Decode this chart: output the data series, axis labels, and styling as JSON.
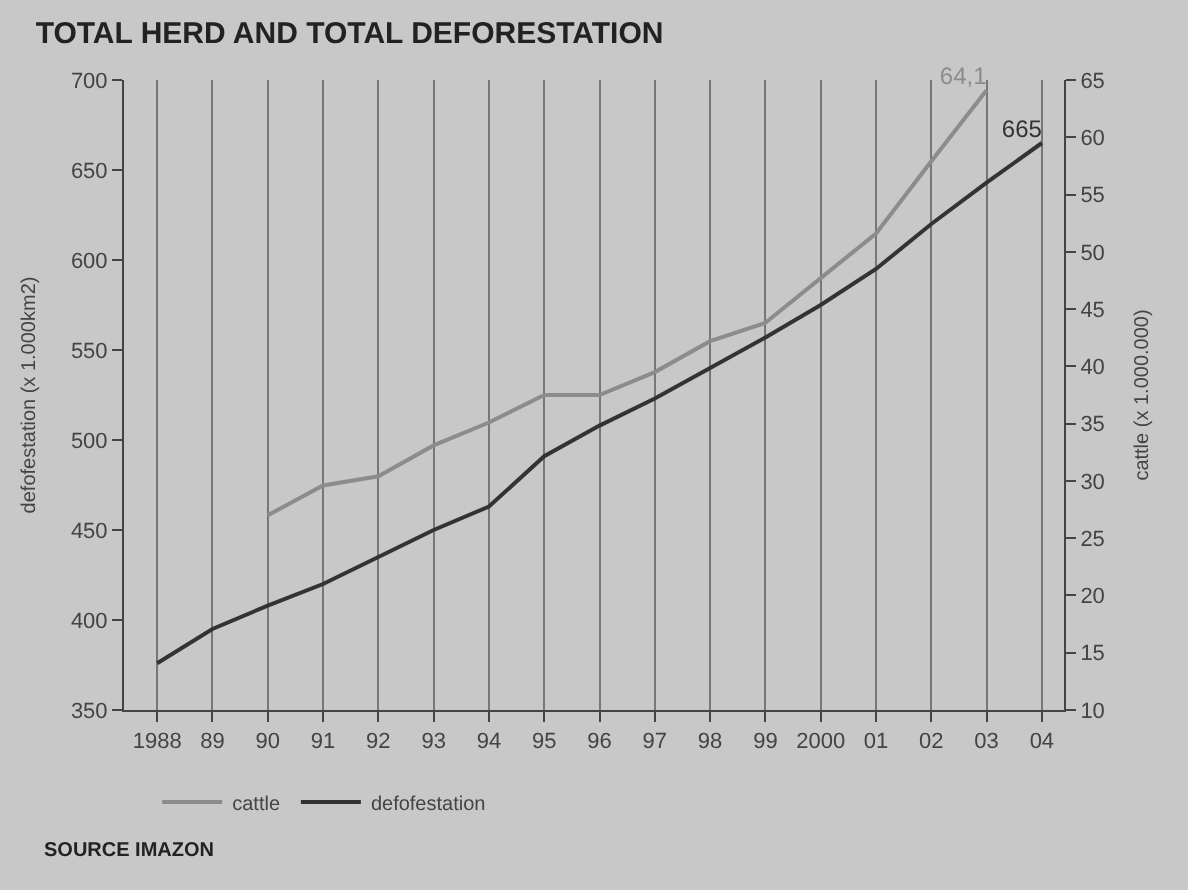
{
  "chart_data": {
    "type": "line",
    "title": "TOTAL HERD AND TOTAL DEFORESTATION",
    "categories": [
      "1988",
      "89",
      "90",
      "91",
      "92",
      "93",
      "94",
      "95",
      "96",
      "97",
      "98",
      "99",
      "2000",
      "01",
      "02",
      "03",
      "04"
    ],
    "series": [
      {
        "name": "cattle",
        "color": "#8c8c8c",
        "axis": "y2",
        "values": [
          null,
          null,
          27.0,
          29.6,
          30.4,
          33.1,
          35.1,
          37.5,
          37.5,
          39.5,
          42.2,
          43.8,
          47.7,
          51.6,
          57.9,
          64.1,
          null
        ],
        "value_labels": [
          null,
          null,
          null,
          null,
          null,
          null,
          null,
          null,
          null,
          null,
          null,
          null,
          null,
          null,
          null,
          "64,1",
          null
        ]
      },
      {
        "name": "defofestation",
        "color": "#333333",
        "values": [
          376,
          395,
          408,
          420,
          435,
          450,
          463,
          491,
          508,
          523,
          540,
          557,
          575,
          595,
          620,
          643,
          665
        ],
        "value_labels": [
          null,
          null,
          null,
          null,
          null,
          null,
          null,
          null,
          null,
          null,
          null,
          null,
          null,
          null,
          null,
          null,
          "665"
        ]
      }
    ],
    "ylabel": "defofestation (x 1.000km2)",
    "y2label": "cattle (x 1.000.000)",
    "ylim": [
      350,
      700
    ],
    "yticks": [
      350,
      400,
      450,
      500,
      550,
      600,
      650,
      700
    ],
    "y2lim": [
      10,
      65
    ],
    "y2ticks": [
      10,
      15,
      20,
      25,
      30,
      35,
      40,
      45,
      50,
      55,
      60,
      65
    ],
    "grid": "x",
    "legend": "bottom",
    "line_style": "solid",
    "marker": "none",
    "annotations": [
      "SOURCE IMAZON"
    ]
  }
}
